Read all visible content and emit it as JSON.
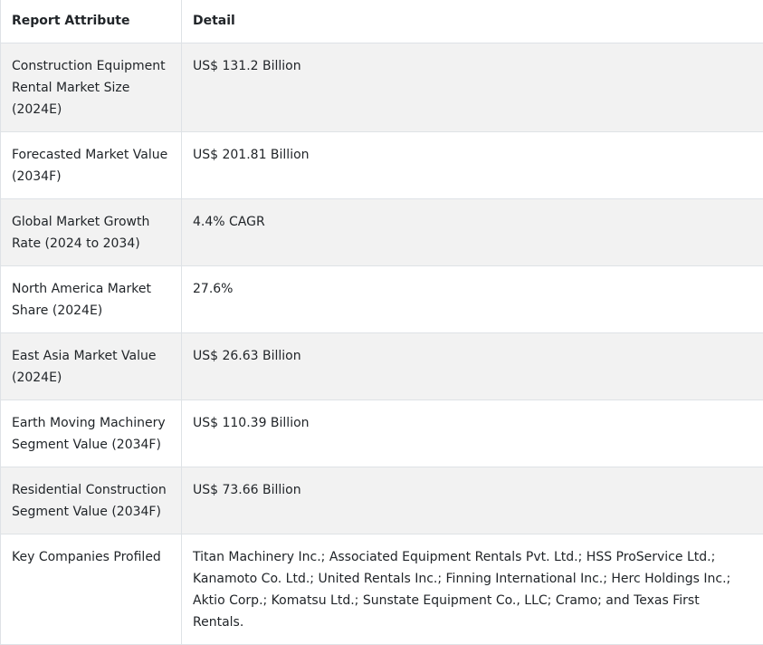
{
  "table": {
    "headers": {
      "attribute": "Report Attribute",
      "detail": "Detail"
    },
    "rows": [
      {
        "attribute": "Construction Equipment Rental Market Size (2024E)",
        "detail": "US$ 131.2 Billion"
      },
      {
        "attribute": "Forecasted Market Value (2034F)",
        "detail": "US$ 201.81 Billion"
      },
      {
        "attribute": "Global Market Growth Rate (2024 to 2034)",
        "detail": "4.4% CAGR"
      },
      {
        "attribute": "North America Market Share (2024E)",
        "detail": "27.6%"
      },
      {
        "attribute": "East Asia Market Value (2024E)",
        "detail": "US$ 26.63 Billion"
      },
      {
        "attribute": "Earth Moving Machinery Segment Value (2034F)",
        "detail": "US$ 110.39 Billion"
      },
      {
        "attribute": "Residential Construction Segment Value (2034F)",
        "detail": "US$ 73.66 Billion"
      },
      {
        "attribute": "Key Companies Profiled",
        "detail": "Titan Machinery Inc.; Associated Equipment Rentals Pvt. Ltd.; HSS ProService Ltd.; Kanamoto Co. Ltd.; United Rentals Inc.; Finning International Inc.; Herc Holdings Inc.; Aktio Corp.; Komatsu Ltd.; Sunstate Equipment Co., LLC; Cramo; and Texas First Rentals."
      }
    ]
  }
}
